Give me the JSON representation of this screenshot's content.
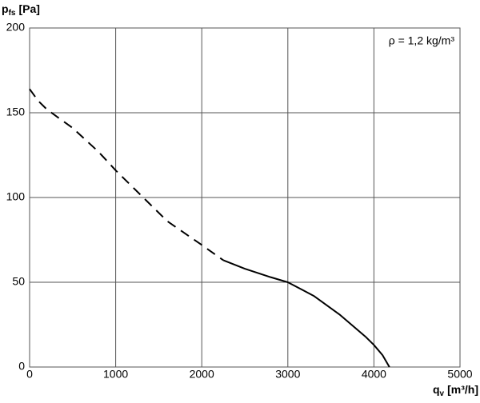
{
  "chart_data": {
    "type": "line",
    "y_label": {
      "symbol": "p",
      "subscript": "fs",
      "unit": "[Pa]"
    },
    "x_label": {
      "symbol": "q",
      "subscript": "v",
      "unit": "[m³/h]"
    },
    "annotation": "ρ = 1,2 kg/m³",
    "xlim": [
      0,
      5000
    ],
    "xticks": [
      0,
      1000,
      2000,
      3000,
      4000,
      5000
    ],
    "ylim": [
      0,
      200
    ],
    "yticks": [
      0,
      50,
      100,
      150,
      200
    ],
    "grid": true,
    "series": [
      {
        "color": "#000000",
        "dashed": true,
        "x": [
          0,
          100,
          200,
          500,
          800,
          1000,
          1300,
          1600,
          2000,
          2250
        ],
        "values": [
          164,
          157,
          152,
          141,
          127,
          116,
          101,
          86,
          72,
          63
        ]
      },
      {
        "color": "#000000",
        "dashed": false,
        "x": [
          2250,
          2500,
          2800,
          3000,
          3300,
          3600,
          3900,
          4000,
          4100,
          4180
        ],
        "values": [
          63,
          58,
          53,
          50,
          42,
          31,
          18,
          13,
          7,
          0
        ]
      }
    ]
  }
}
